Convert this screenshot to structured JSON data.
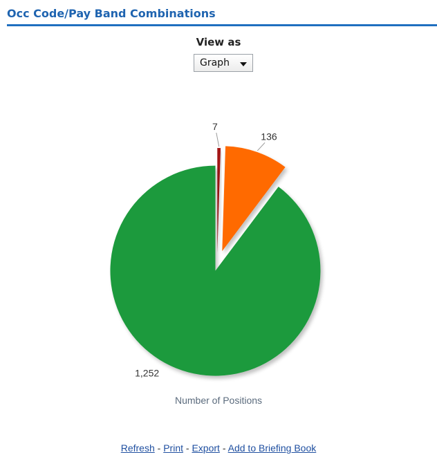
{
  "header": {
    "title": "Occ Code/Pay Band Combinations"
  },
  "view_as": {
    "label": "View as",
    "selected": "Graph"
  },
  "chart_data": {
    "type": "pie",
    "title": "Number of Positions",
    "slices": [
      {
        "value": 7,
        "label": "7",
        "color": "#a31414"
      },
      {
        "value": 136,
        "label": "136",
        "color": "#ff6a00"
      },
      {
        "value": 1252,
        "label": "1,252",
        "color": "#1f9a3c"
      }
    ],
    "exploded": true
  },
  "links": {
    "refresh": "Refresh",
    "print": "Print",
    "export": "Export",
    "briefing": "Add to Briefing Book",
    "sep": "-"
  },
  "colors": {
    "header_accent": "#1f6fbf",
    "link": "#1f4fa0"
  }
}
